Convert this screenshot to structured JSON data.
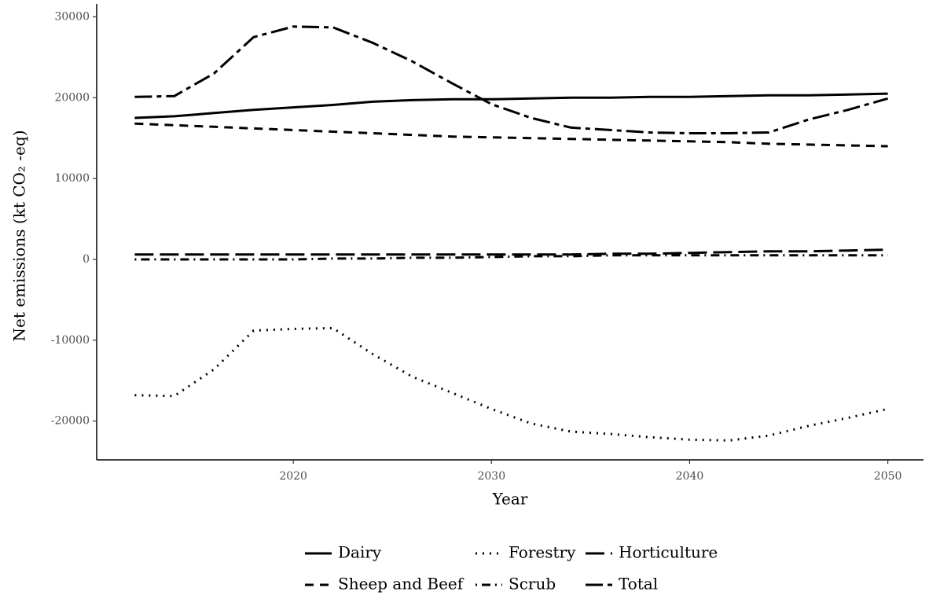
{
  "chart_data": {
    "type": "line",
    "x_label": "Year",
    "y_label": "Net emissions (kt  CO₂ -eq)",
    "x": [
      2012,
      2014,
      2016,
      2018,
      2020,
      2022,
      2024,
      2026,
      2028,
      2030,
      2032,
      2034,
      2036,
      2038,
      2040,
      2042,
      2044,
      2046,
      2048,
      2050
    ],
    "series": [
      {
        "name": "Dairy",
        "color": "#000000",
        "linetype": "solid",
        "values": [
          17500,
          17700,
          18100,
          18500,
          18800,
          19100,
          19500,
          19700,
          19800,
          19800,
          19900,
          20000,
          20000,
          20100,
          20100,
          20200,
          20300,
          20300,
          20400,
          20500
        ]
      },
      {
        "name": "Forestry",
        "color": "#000000",
        "linetype": "dotted",
        "values": [
          -16800,
          -16900,
          -13600,
          -8800,
          -8600,
          -8500,
          -11700,
          -14500,
          -16500,
          -18500,
          -20300,
          -21300,
          -21600,
          -22000,
          -22300,
          -22400,
          -21800,
          -20600,
          -19600,
          -18500
        ]
      },
      {
        "name": "Horticulture",
        "color": "#000000",
        "linetype": "longdash",
        "values": [
          600,
          600,
          600,
          600,
          600,
          600,
          600,
          600,
          600,
          600,
          600,
          600,
          700,
          700,
          800,
          900,
          1000,
          1000,
          1100,
          1200
        ]
      },
      {
        "name": "Sheep and Beef",
        "color": "#000000",
        "linetype": "dashed",
        "values": [
          16800,
          16600,
          16400,
          16200,
          16000,
          15800,
          15600,
          15400,
          15200,
          15100,
          15000,
          14900,
          14800,
          14700,
          14600,
          14500,
          14300,
          14200,
          14100,
          14000
        ]
      },
      {
        "name": "Scrub",
        "color": "#000000",
        "linetype": "dotdash",
        "values": [
          0,
          0,
          0,
          0,
          0,
          100,
          100,
          200,
          200,
          300,
          400,
          400,
          500,
          500,
          500,
          500,
          500,
          500,
          500,
          500
        ]
      },
      {
        "name": "Total",
        "color": "#000000",
        "linetype": "twodash",
        "values": [
          20100,
          20200,
          23000,
          27500,
          28800,
          28700,
          26800,
          24500,
          21800,
          19200,
          17500,
          16300,
          16000,
          15700,
          15600,
          15600,
          15700,
          17300,
          18500,
          19900
        ]
      }
    ],
    "xlim": [
      2010.08,
      2051.8
    ],
    "xticks": [
      2020,
      2030,
      2040,
      2050
    ],
    "ylim": [
      -24800,
      31600
    ],
    "yticks": [
      -20000,
      -10000,
      0,
      10000,
      20000,
      30000
    ],
    "grid": false,
    "legend_position": "bottom"
  }
}
